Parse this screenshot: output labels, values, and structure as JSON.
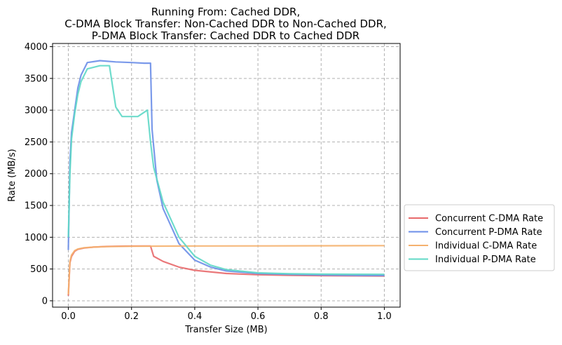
{
  "chart_data": {
    "type": "line",
    "title_lines": [
      "Running From: Cached DDR,",
      "C-DMA Block Transfer: Non-Cached DDR to Non-Cached DDR,",
      "P-DMA Block Transfer: Cached DDR to Cached DDR"
    ],
    "xlabel": "Transfer Size (MB)",
    "ylabel": "Rate (MB/s)",
    "xlim": [
      -0.05,
      1.05
    ],
    "ylim": [
      -100,
      4050
    ],
    "xticks": [
      0.0,
      0.2,
      0.4,
      0.6,
      0.8,
      1.0
    ],
    "xtick_labels": [
      "0.0",
      "0.2",
      "0.4",
      "0.6",
      "0.8",
      "1.0"
    ],
    "yticks": [
      0,
      500,
      1000,
      1500,
      2000,
      2500,
      3000,
      3500,
      4000
    ],
    "ytick_labels": [
      "0",
      "500",
      "1000",
      "1500",
      "2000",
      "2500",
      "3000",
      "3500",
      "4000"
    ],
    "grid": true,
    "legend_position": "outside-right-bottom",
    "series": [
      {
        "name": "Concurrent C-DMA Rate",
        "color": "#e8696b",
        "x": [
          0.0,
          0.005,
          0.01,
          0.02,
          0.03,
          0.05,
          0.08,
          0.12,
          0.18,
          0.24,
          0.26,
          0.27,
          0.3,
          0.35,
          0.4,
          0.5,
          0.6,
          0.7,
          0.8,
          0.9,
          1.0
        ],
        "y": [
          80,
          600,
          700,
          780,
          810,
          830,
          845,
          855,
          860,
          862,
          862,
          700,
          620,
          530,
          480,
          430,
          410,
          400,
          395,
          392,
          390
        ]
      },
      {
        "name": "Concurrent P-DMA Rate",
        "color": "#6b8ee8",
        "x": [
          0.0,
          0.005,
          0.01,
          0.02,
          0.03,
          0.04,
          0.06,
          0.1,
          0.15,
          0.2,
          0.24,
          0.26,
          0.265,
          0.28,
          0.3,
          0.35,
          0.4,
          0.45,
          0.5,
          0.6,
          0.7,
          0.8,
          0.9,
          1.0
        ],
        "y": [
          800,
          2200,
          2650,
          3000,
          3350,
          3550,
          3750,
          3780,
          3760,
          3750,
          3740,
          3740,
          2700,
          1900,
          1450,
          900,
          640,
          530,
          470,
          430,
          415,
          405,
          400,
          398
        ]
      },
      {
        "name": "Individual C-DMA Rate",
        "color": "#f5b16e",
        "x": [
          0.0,
          0.005,
          0.01,
          0.02,
          0.03,
          0.05,
          0.08,
          0.12,
          0.2,
          0.3,
          0.4,
          0.6,
          0.8,
          1.0
        ],
        "y": [
          100,
          620,
          720,
          790,
          815,
          835,
          845,
          852,
          858,
          860,
          862,
          864,
          866,
          868
        ]
      },
      {
        "name": "Individual P-DMA Rate",
        "color": "#5fd8c6",
        "x": [
          0.0,
          0.005,
          0.01,
          0.02,
          0.03,
          0.04,
          0.06,
          0.1,
          0.13,
          0.15,
          0.17,
          0.2,
          0.22,
          0.25,
          0.26,
          0.27,
          0.3,
          0.35,
          0.4,
          0.45,
          0.5,
          0.6,
          0.7,
          0.8,
          0.9,
          1.0
        ],
        "y": [
          1000,
          2000,
          2550,
          2950,
          3250,
          3450,
          3650,
          3700,
          3700,
          3050,
          2900,
          2900,
          2900,
          3000,
          2500,
          2100,
          1550,
          1000,
          700,
          560,
          490,
          440,
          425,
          420,
          418,
          416
        ]
      }
    ]
  }
}
